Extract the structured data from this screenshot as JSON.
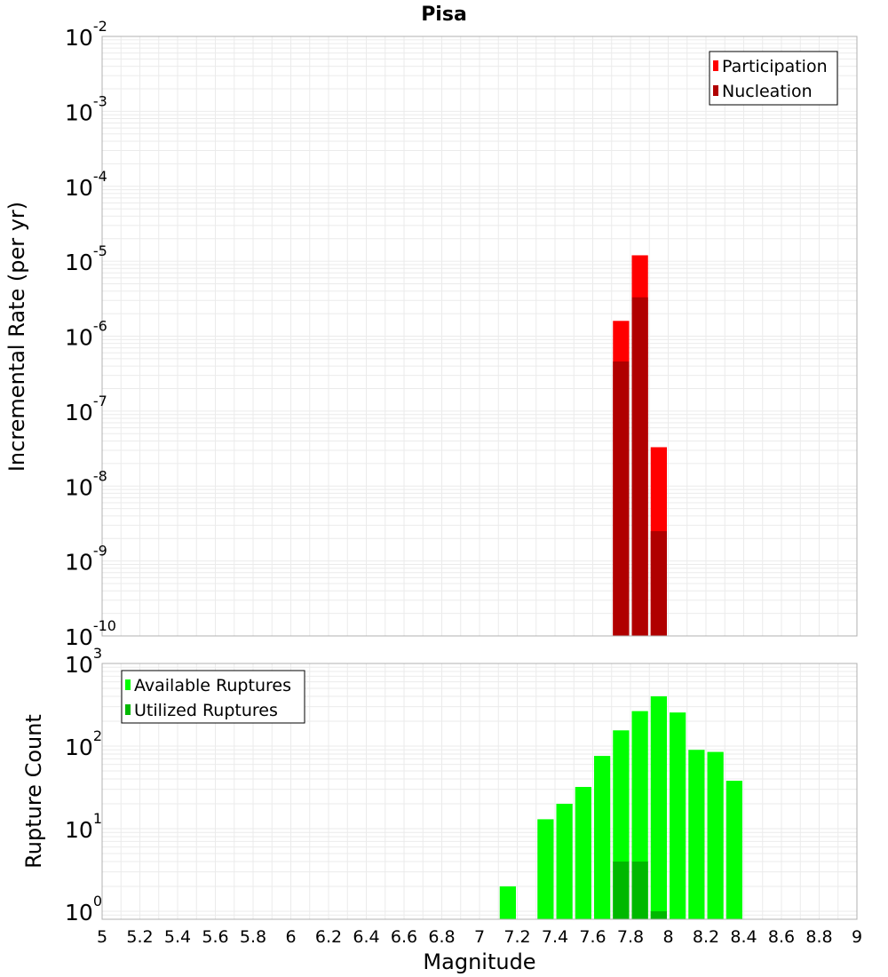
{
  "colors": {
    "participation": "#ff0000",
    "nucleation": "#b00000",
    "available": "#00ff00",
    "utilized": "#00b800",
    "grid": "#ebebeb",
    "frame": "#b0b0b0"
  },
  "chart_data": [
    {
      "type": "bar",
      "title": "Pisa",
      "xlabel": "",
      "ylabel": "Incremental Rate (per yr)",
      "yscale": "log",
      "ylim": [
        1e-10,
        0.01
      ],
      "xlim": [
        5,
        9
      ],
      "grid": true,
      "legend_position": "top-right",
      "y_tick_exponents": [
        "-10",
        "-9",
        "-8",
        "-7",
        "-6",
        "-5",
        "-4",
        "-3",
        "-2"
      ],
      "series": [
        {
          "name": "Participation",
          "x": [
            7.75,
            7.85,
            7.95
          ],
          "values": [
            1.6e-06,
            1.2e-05,
            3.3e-08
          ]
        },
        {
          "name": "Nucleation",
          "x": [
            7.75,
            7.85,
            7.95
          ],
          "values": [
            4.6e-07,
            3.3e-06,
            2.5e-09
          ]
        }
      ]
    },
    {
      "type": "bar",
      "title": "",
      "xlabel": "Magnitude",
      "ylabel": "Rupture Count",
      "yscale": "log",
      "ylim": [
        0.8,
        1000
      ],
      "xlim": [
        5,
        9
      ],
      "grid": true,
      "legend_position": "top-left",
      "x_ticks": [
        "5",
        "5.2",
        "5.4",
        "5.6",
        "5.8",
        "6",
        "6.2",
        "6.4",
        "6.6",
        "6.8",
        "7",
        "7.2",
        "7.4",
        "7.6",
        "7.8",
        "8",
        "8.2",
        "8.4",
        "8.6",
        "8.8",
        "9"
      ],
      "y_tick_exponents": [
        "0",
        "1",
        "2",
        "3"
      ],
      "series": [
        {
          "name": "Available Ruptures",
          "x": [
            7.15,
            7.35,
            7.45,
            7.55,
            7.65,
            7.75,
            7.85,
            7.95,
            8.05,
            8.15,
            8.25,
            8.35
          ],
          "values": [
            2,
            13,
            20,
            32,
            76,
            155,
            265,
            400,
            255,
            90,
            85,
            38
          ]
        },
        {
          "name": "Utilized Ruptures",
          "x": [
            7.75,
            7.85,
            7.95
          ],
          "values": [
            4,
            4,
            1
          ]
        }
      ]
    }
  ]
}
